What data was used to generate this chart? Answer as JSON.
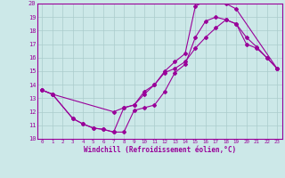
{
  "title": "",
  "xlabel": "Windchill (Refroidissement éolien,°C)",
  "bg_color": "#cce8e8",
  "grid_color": "#aacccc",
  "line_color": "#990099",
  "xlim": [
    -0.5,
    23.5
  ],
  "ylim": [
    10,
    20
  ],
  "yticks": [
    10,
    11,
    12,
    13,
    14,
    15,
    16,
    17,
    18,
    19,
    20
  ],
  "xticks": [
    0,
    1,
    2,
    3,
    4,
    5,
    6,
    7,
    8,
    9,
    10,
    11,
    12,
    13,
    14,
    15,
    16,
    17,
    18,
    19,
    20,
    21,
    22,
    23
  ],
  "curve1_x": [
    0,
    1,
    3,
    4,
    5,
    6,
    7,
    8,
    9,
    10,
    11,
    12,
    13,
    14,
    15,
    16,
    17,
    18,
    19,
    20,
    21,
    22,
    23
  ],
  "curve1_y": [
    13.6,
    13.3,
    11.5,
    11.1,
    10.8,
    10.7,
    10.5,
    10.5,
    12.1,
    12.3,
    12.5,
    13.5,
    14.9,
    15.5,
    17.5,
    18.7,
    19.0,
    18.8,
    18.5,
    17.0,
    16.7,
    16.0,
    15.2
  ],
  "curve2_x": [
    0,
    1,
    3,
    4,
    5,
    6,
    7,
    8,
    9,
    10,
    11,
    12,
    13,
    14,
    15,
    16,
    17,
    18,
    19,
    23
  ],
  "curve2_y": [
    13.6,
    13.3,
    11.5,
    11.1,
    10.8,
    10.7,
    10.5,
    12.3,
    12.5,
    13.5,
    14.0,
    15.0,
    15.7,
    16.3,
    19.8,
    20.2,
    20.2,
    20.0,
    19.6,
    15.2
  ],
  "curve3_x": [
    0,
    1,
    7,
    8,
    9,
    10,
    11,
    12,
    13,
    14,
    15,
    16,
    17,
    18,
    19,
    20,
    21,
    22,
    23
  ],
  "curve3_y": [
    13.6,
    13.3,
    12.0,
    12.3,
    12.5,
    13.3,
    14.0,
    14.9,
    15.2,
    15.7,
    16.7,
    17.5,
    18.2,
    18.8,
    18.5,
    17.5,
    16.8,
    16.0,
    15.2
  ]
}
